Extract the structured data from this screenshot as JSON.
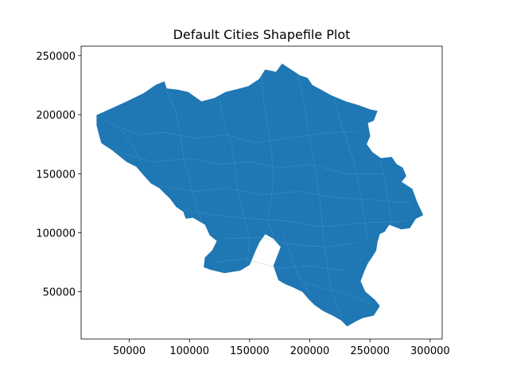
{
  "chart_data": {
    "type": "map",
    "title": "Default Cities Shapefile Plot",
    "xlabel": "",
    "ylabel": "",
    "xlim": [
      10000,
      310000
    ],
    "ylim": [
      10000,
      258000
    ],
    "x_ticks": [
      50000,
      100000,
      150000,
      200000,
      250000,
      300000
    ],
    "y_ticks": [
      50000,
      100000,
      150000,
      200000,
      250000
    ],
    "fill_color": "#1f77b4",
    "edge_color": "#6aa6d3",
    "grid": false,
    "legend": "none",
    "outline": [
      [
        23000,
        199500
      ],
      [
        35000,
        205000
      ],
      [
        48000,
        211000
      ],
      [
        62000,
        218000
      ],
      [
        72000,
        225000
      ],
      [
        79000,
        228000
      ],
      [
        81000,
        222000
      ],
      [
        90000,
        221000
      ],
      [
        99000,
        219000
      ],
      [
        110000,
        211000
      ],
      [
        121000,
        214000
      ],
      [
        130000,
        219000
      ],
      [
        140000,
        221500
      ],
      [
        149000,
        224000
      ],
      [
        158000,
        230000
      ],
      [
        163000,
        238000
      ],
      [
        172000,
        236000
      ],
      [
        177000,
        243000
      ],
      [
        186000,
        237000
      ],
      [
        192000,
        233000
      ],
      [
        198000,
        231000
      ],
      [
        202000,
        225000
      ],
      [
        211000,
        220000
      ],
      [
        218000,
        216000
      ],
      [
        230000,
        211000
      ],
      [
        240000,
        208000
      ],
      [
        251000,
        204000
      ],
      [
        256000,
        203000
      ],
      [
        253000,
        195000
      ],
      [
        248000,
        193000
      ],
      [
        250000,
        182000
      ],
      [
        247000,
        175000
      ],
      [
        252000,
        168000
      ],
      [
        259000,
        163000
      ],
      [
        268000,
        164000
      ],
      [
        272000,
        158000
      ],
      [
        277000,
        155000
      ],
      [
        280000,
        148000
      ],
      [
        276000,
        143000
      ],
      [
        285000,
        137000
      ],
      [
        289000,
        126000
      ],
      [
        294000,
        115000
      ],
      [
        288000,
        112000
      ],
      [
        283000,
        104000
      ],
      [
        276000,
        103000
      ],
      [
        266000,
        107000
      ],
      [
        262000,
        101000
      ],
      [
        258000,
        99000
      ],
      [
        256000,
        92000
      ],
      [
        255000,
        85000
      ],
      [
        252000,
        80000
      ],
      [
        248000,
        74000
      ],
      [
        245000,
        67000
      ],
      [
        242000,
        59000
      ],
      [
        246000,
        50000
      ],
      [
        254000,
        43000
      ],
      [
        258000,
        38000
      ],
      [
        253000,
        30000
      ],
      [
        244000,
        28000
      ],
      [
        238000,
        25000
      ],
      [
        231000,
        21000
      ],
      [
        226000,
        26000
      ],
      [
        219000,
        30000
      ],
      [
        211000,
        34000
      ],
      [
        204000,
        39000
      ],
      [
        199000,
        44000
      ],
      [
        194000,
        50000
      ],
      [
        186000,
        54000
      ],
      [
        179000,
        57000
      ],
      [
        174000,
        60000
      ],
      [
        170000,
        72000
      ],
      [
        173000,
        80000
      ],
      [
        176000,
        88000
      ],
      [
        170000,
        95000
      ],
      [
        163000,
        99000
      ],
      [
        158000,
        92000
      ],
      [
        154000,
        83000
      ],
      [
        150000,
        73000
      ],
      [
        142000,
        68000
      ],
      [
        129000,
        66000
      ],
      [
        117000,
        69000
      ],
      [
        112000,
        71000
      ],
      [
        113000,
        79000
      ],
      [
        119000,
        85000
      ],
      [
        123000,
        93000
      ],
      [
        117000,
        98000
      ],
      [
        113000,
        107000
      ],
      [
        103000,
        113000
      ],
      [
        97000,
        112000
      ],
      [
        95000,
        118000
      ],
      [
        89000,
        122000
      ],
      [
        84000,
        129000
      ],
      [
        80000,
        133000
      ],
      [
        75000,
        138000
      ],
      [
        68000,
        142000
      ],
      [
        61000,
        150000
      ],
      [
        56000,
        156000
      ],
      [
        48000,
        160000
      ],
      [
        42000,
        165000
      ],
      [
        36000,
        170000
      ],
      [
        27000,
        176000
      ],
      [
        25000,
        183000
      ],
      [
        23000,
        191000
      ],
      [
        23000,
        199500
      ]
    ],
    "boundaries": [
      [
        [
          40000,
          190000
        ],
        [
          60000,
          183000
        ],
        [
          80000,
          185000
        ],
        [
          105000,
          180000
        ],
        [
          130000,
          183000
        ],
        [
          155000,
          176000
        ],
        [
          180000,
          180000
        ],
        [
          210000,
          184000
        ],
        [
          240000,
          186000
        ]
      ],
      [
        [
          42000,
          168000
        ],
        [
          70000,
          160000
        ],
        [
          100000,
          163000
        ],
        [
          125000,
          158000
        ],
        [
          150000,
          160000
        ],
        [
          175000,
          155000
        ],
        [
          200000,
          158000
        ],
        [
          230000,
          150000
        ],
        [
          262000,
          150000
        ]
      ],
      [
        [
          75000,
          140000
        ],
        [
          105000,
          135000
        ],
        [
          130000,
          138000
        ],
        [
          160000,
          132000
        ],
        [
          190000,
          135000
        ],
        [
          220000,
          130000
        ],
        [
          250000,
          128000
        ],
        [
          285000,
          125000
        ]
      ],
      [
        [
          95000,
          120000
        ],
        [
          120000,
          115000
        ],
        [
          150000,
          112000
        ],
        [
          180000,
          110000
        ],
        [
          210000,
          105000
        ],
        [
          240000,
          108000
        ],
        [
          280000,
          110000
        ]
      ],
      [
        [
          130000,
          95000
        ],
        [
          160000,
          96000
        ],
        [
          185000,
          90000
        ],
        [
          215000,
          88000
        ],
        [
          240000,
          92000
        ]
      ],
      [
        [
          120000,
          75000
        ],
        [
          145000,
          78000
        ],
        [
          175000,
          70000
        ],
        [
          200000,
          72000
        ],
        [
          230000,
          68000
        ]
      ],
      [
        [
          195000,
          58000
        ],
        [
          215000,
          52000
        ],
        [
          235000,
          47000
        ],
        [
          250000,
          40000
        ]
      ],
      [
        [
          30000,
          196000
        ],
        [
          45000,
          185000
        ],
        [
          55000,
          170000
        ],
        [
          60000,
          158000
        ]
      ],
      [
        [
          80000,
          222000
        ],
        [
          88000,
          205000
        ],
        [
          92000,
          185000
        ],
        [
          95000,
          165000
        ],
        [
          100000,
          145000
        ],
        [
          105000,
          125000
        ],
        [
          110000,
          110000
        ]
      ],
      [
        [
          125000,
          213000
        ],
        [
          128000,
          195000
        ],
        [
          135000,
          175000
        ],
        [
          138000,
          155000
        ],
        [
          140000,
          135000
        ],
        [
          145000,
          115000
        ],
        [
          150000,
          95000
        ],
        [
          148000,
          75000
        ]
      ],
      [
        [
          160000,
          232000
        ],
        [
          162000,
          210000
        ],
        [
          165000,
          190000
        ],
        [
          168000,
          170000
        ],
        [
          170000,
          150000
        ],
        [
          168000,
          130000
        ],
        [
          165000,
          110000
        ],
        [
          170000,
          97000
        ]
      ],
      [
        [
          190000,
          234000
        ],
        [
          195000,
          212000
        ],
        [
          198000,
          190000
        ],
        [
          202000,
          170000
        ],
        [
          205000,
          150000
        ],
        [
          208000,
          130000
        ],
        [
          210000,
          110000
        ],
        [
          212000,
          90000
        ],
        [
          215000,
          70000
        ],
        [
          218000,
          50000
        ],
        [
          228000,
          24000
        ]
      ],
      [
        [
          220000,
          214000
        ],
        [
          225000,
          195000
        ],
        [
          232000,
          175000
        ],
        [
          238000,
          155000
        ],
        [
          242000,
          135000
        ],
        [
          245000,
          115000
        ],
        [
          248000,
          95000
        ]
      ],
      [
        [
          258000,
          162000
        ],
        [
          262000,
          145000
        ],
        [
          265000,
          128000
        ],
        [
          268000,
          108000
        ]
      ],
      [
        [
          178000,
          98000
        ],
        [
          185000,
          80000
        ],
        [
          190000,
          65000
        ],
        [
          200000,
          48000
        ]
      ]
    ]
  }
}
